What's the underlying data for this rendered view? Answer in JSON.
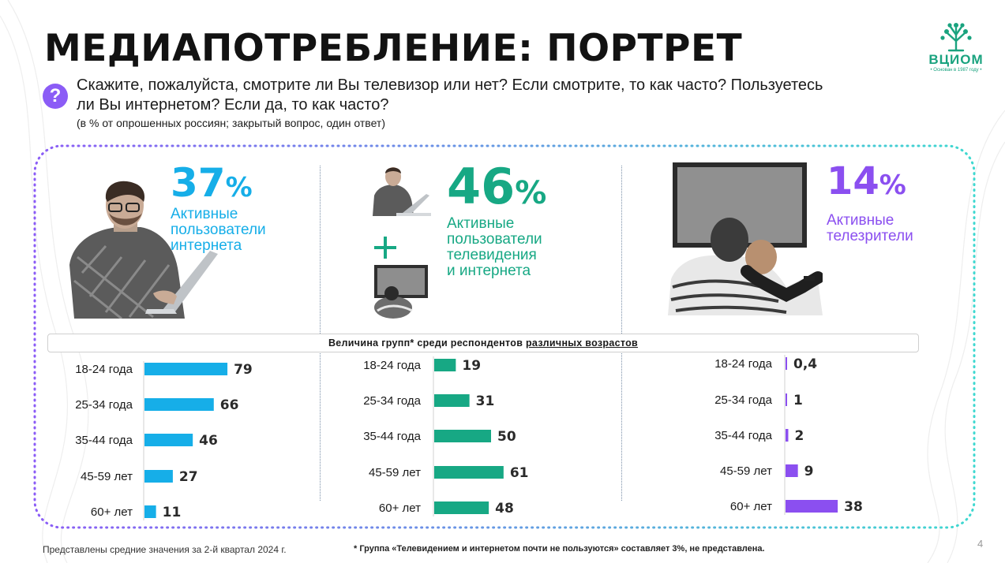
{
  "title": "МЕДИАПОТРЕБЛЕНИЕ: ПОРТРЕТ",
  "logo": {
    "name": "ВЦИОМ",
    "tagline": "• Основан в 1987 году •"
  },
  "question": {
    "text": "Скажите, пожалуйста, смотрите ли Вы телевизор или нет? Если смотрите, то как часто? Пользуетесь ли Вы интернетом? Если да, то как часто?",
    "note": "(в % от опрошенных россиян; закрытый вопрос, один ответ)",
    "badge": "?"
  },
  "colors": {
    "internet": "#16aee8",
    "both": "#17a884",
    "tv": "#8b4ff0",
    "frame_start": "#8b5cf6",
    "frame_end": "#3ed8d0"
  },
  "groups": [
    {
      "value": "37",
      "unit": "%",
      "label_lines": [
        "Активные",
        "пользователи",
        "интернета"
      ]
    },
    {
      "value": "46",
      "unit": "%",
      "label_lines": [
        "Активные",
        "пользователи",
        "телевидения",
        "и интернета"
      ]
    },
    {
      "value": "14",
      "unit": "%",
      "label_lines": [
        "Активные",
        "телезрители"
      ]
    }
  ],
  "band": {
    "pre": "Величина групп* среди респондентов ",
    "underlined": "различных возрастов"
  },
  "chart_data": [
    {
      "type": "bar",
      "orientation": "horizontal",
      "categories": [
        "18-24 года",
        "25-34 года",
        "35-44 года",
        "45-59 лет",
        "60+ лет"
      ],
      "values": [
        79,
        66,
        46,
        27,
        11
      ],
      "value_labels": [
        "79",
        "66",
        "46",
        "27",
        "11"
      ],
      "color": "#16aee8"
    },
    {
      "type": "bar",
      "orientation": "horizontal",
      "categories": [
        "18-24 года",
        "25-34 года",
        "35-44 года",
        "45-59 лет",
        "60+ лет"
      ],
      "values": [
        19,
        31,
        50,
        61,
        48
      ],
      "value_labels": [
        "19",
        "31",
        "50",
        "61",
        "48"
      ],
      "color": "#17a884"
    },
    {
      "type": "bar",
      "orientation": "horizontal",
      "categories": [
        "18-24 года",
        "25-34 года",
        "35-44 года",
        "45-59 лет",
        "60+ лет"
      ],
      "values": [
        0.4,
        1,
        2,
        9,
        38
      ],
      "value_labels": [
        "0,4",
        "1",
        "2",
        "9",
        "38"
      ],
      "color": "#8b4ff0"
    }
  ],
  "footer": {
    "left": "Представлены средние значения за 2-й квартал 2024 г.",
    "right": "* Группа «Телевидением и интернетом почти не пользуются» составляет 3%, не представлена.",
    "page": "4"
  }
}
